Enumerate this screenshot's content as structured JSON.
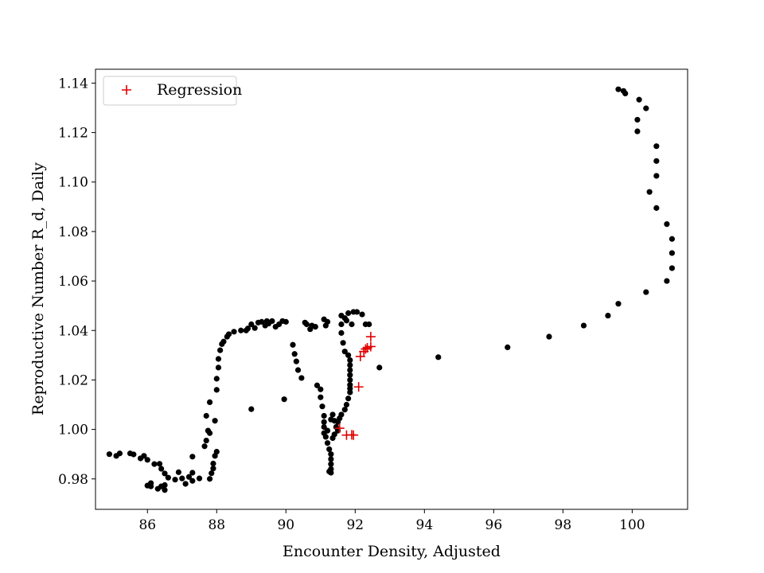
{
  "chart_data": {
    "type": "scatter",
    "title": "",
    "xlabel": "Encounter Density, Adjusted",
    "ylabel": "Reproductive Number R_d, Daily",
    "xlim": [
      84.5,
      101.6
    ],
    "ylim": [
      0.9677,
      1.1456
    ],
    "xticks": [
      86,
      88,
      90,
      92,
      94,
      96,
      98,
      100
    ],
    "yticks": [
      0.98,
      1.0,
      1.02,
      1.04,
      1.06,
      1.08,
      1.1,
      1.12,
      1.14
    ],
    "xtick_labels": [
      "86",
      "88",
      "90",
      "92",
      "94",
      "96",
      "98",
      "100"
    ],
    "ytick_labels": [
      "0.98",
      "1.00",
      "1.02",
      "1.04",
      "1.06",
      "1.08",
      "1.10",
      "1.12",
      "1.14"
    ],
    "grid": false,
    "legend": {
      "position": "top-left",
      "entries": [
        "Regression"
      ]
    },
    "series": [
      {
        "name": "",
        "marker": "dot",
        "color": "#000000",
        "points": [
          [
            84.9,
            0.99
          ],
          [
            85.1,
            0.9893
          ],
          [
            85.2,
            0.9903
          ],
          [
            85.5,
            0.9903
          ],
          [
            85.6,
            0.9899
          ],
          [
            85.8,
            0.9883
          ],
          [
            85.9,
            0.9893
          ],
          [
            86.0,
            0.9877
          ],
          [
            86.2,
            0.986
          ],
          [
            86.35,
            0.9861
          ],
          [
            86.4,
            0.9841
          ],
          [
            86.5,
            0.9822
          ],
          [
            86.6,
            0.9805
          ],
          [
            86.8,
            0.9797
          ],
          [
            86.9,
            0.9827
          ],
          [
            87.0,
            0.9802
          ],
          [
            87.1,
            0.978
          ],
          [
            87.2,
            0.9808
          ],
          [
            87.3,
            0.9825
          ],
          [
            87.3,
            0.9792
          ],
          [
            87.3,
            0.989
          ],
          [
            87.5,
            0.9802
          ],
          [
            87.65,
            0.9932
          ],
          [
            87.7,
            0.9955
          ],
          [
            87.75,
            0.9995
          ],
          [
            87.7,
            1.0055
          ],
          [
            87.8,
            0.9985
          ],
          [
            87.8,
            0.98
          ],
          [
            87.85,
            0.9823
          ],
          [
            87.9,
            0.9842
          ],
          [
            87.9,
            0.9862
          ],
          [
            87.95,
            0.9893
          ],
          [
            87.95,
            1.0035
          ],
          [
            87.8,
            1.011
          ],
          [
            88.0,
            0.991
          ],
          [
            88.0,
            1.016
          ],
          [
            88.0,
            1.0205
          ],
          [
            88.05,
            1.025
          ],
          [
            88.05,
            1.0285
          ],
          [
            88.1,
            1.032
          ],
          [
            88.15,
            1.0345
          ],
          [
            88.2,
            1.0355
          ],
          [
            88.3,
            1.0375
          ],
          [
            88.35,
            1.0385
          ],
          [
            88.5,
            1.0395
          ],
          [
            88.7,
            1.04
          ],
          [
            88.85,
            1.04
          ],
          [
            88.9,
            1.0408
          ],
          [
            89.0,
            1.0425
          ],
          [
            89.1,
            1.041
          ],
          [
            89.2,
            1.0432
          ],
          [
            89.3,
            1.0435
          ],
          [
            89.4,
            1.042
          ],
          [
            89.45,
            1.0438
          ],
          [
            89.5,
            1.0428
          ],
          [
            89.6,
            1.0438
          ],
          [
            89.7,
            1.0415
          ],
          [
            89.8,
            1.0425
          ],
          [
            89.9,
            1.0438
          ],
          [
            90.0,
            1.0435
          ],
          [
            89.0,
            1.0082
          ],
          [
            89.95,
            1.0122
          ],
          [
            86.0,
            0.9773
          ],
          [
            86.1,
            0.9783
          ],
          [
            86.1,
            0.977
          ],
          [
            86.3,
            0.976
          ],
          [
            86.4,
            0.977
          ],
          [
            86.5,
            0.9755
          ],
          [
            86.5,
            0.9775
          ],
          [
            90.2,
            1.0342
          ],
          [
            90.25,
            1.0305
          ],
          [
            90.3,
            1.0275
          ],
          [
            90.35,
            1.024
          ],
          [
            90.45,
            1.0208
          ],
          [
            90.55,
            1.0432
          ],
          [
            90.6,
            1.0425
          ],
          [
            90.7,
            1.0405
          ],
          [
            90.75,
            1.042
          ],
          [
            90.85,
            1.0415
          ],
          [
            90.9,
            1.0178
          ],
          [
            91.0,
            1.0162
          ],
          [
            91.0,
            1.013
          ],
          [
            91.05,
            1.0093
          ],
          [
            91.1,
            1.0445
          ],
          [
            91.15,
            1.042
          ],
          [
            91.2,
            1.0435
          ],
          [
            91.1,
            1.0055
          ],
          [
            91.1,
            1.003
          ],
          [
            91.1,
            1.001
          ],
          [
            91.1,
            0.9985
          ],
          [
            91.15,
            0.997
          ],
          [
            91.2,
            0.9945
          ],
          [
            91.25,
            0.992
          ],
          [
            91.3,
            0.99
          ],
          [
            91.3,
            0.988
          ],
          [
            91.3,
            0.986
          ],
          [
            91.3,
            0.984
          ],
          [
            91.3,
            0.9825
          ],
          [
            91.25,
            0.983
          ],
          [
            91.3,
            1.004
          ],
          [
            91.35,
            1.006
          ],
          [
            91.4,
            1.0035
          ],
          [
            91.45,
            1.001
          ],
          [
            91.5,
            0.9995
          ],
          [
            91.4,
            0.998
          ],
          [
            91.2,
            0.9995
          ],
          [
            91.35,
            0.9965
          ],
          [
            91.6,
            1.046
          ],
          [
            91.7,
            1.045
          ],
          [
            91.75,
            1.044
          ],
          [
            91.6,
            1.0425
          ],
          [
            91.6,
            1.039
          ],
          [
            91.65,
            1.035
          ],
          [
            91.7,
            1.0315
          ],
          [
            91.8,
            1.03
          ],
          [
            91.85,
            1.028
          ],
          [
            91.85,
            1.026
          ],
          [
            91.85,
            1.024
          ],
          [
            91.85,
            1.022
          ],
          [
            91.85,
            1.02
          ],
          [
            91.85,
            1.018
          ],
          [
            91.85,
            1.0165
          ],
          [
            91.85,
            1.015
          ],
          [
            91.8,
            1.0125
          ],
          [
            91.75,
            1.01
          ],
          [
            91.7,
            1.008
          ],
          [
            91.6,
            1.006
          ],
          [
            91.55,
            1.0045
          ],
          [
            91.5,
            1.003
          ],
          [
            91.8,
            1.047
          ],
          [
            91.95,
            1.0475
          ],
          [
            92.05,
            1.0475
          ],
          [
            92.2,
            1.0465
          ],
          [
            92.3,
            1.0425
          ],
          [
            92.4,
            1.0425
          ],
          [
            91.9,
            1.0425
          ],
          [
            92.7,
            1.025
          ],
          [
            94.4,
            1.0292
          ],
          [
            96.4,
            1.0332
          ],
          [
            97.6,
            1.0375
          ],
          [
            98.6,
            1.042
          ],
          [
            99.3,
            1.046
          ],
          [
            99.6,
            1.0508
          ],
          [
            100.4,
            1.0555
          ],
          [
            101.0,
            1.06
          ],
          [
            101.15,
            1.0652
          ],
          [
            101.15,
            1.0713
          ],
          [
            101.15,
            1.077
          ],
          [
            101.0,
            1.083
          ],
          [
            100.7,
            1.0895
          ],
          [
            100.5,
            1.096
          ],
          [
            100.7,
            1.1025
          ],
          [
            100.7,
            1.1085
          ],
          [
            100.7,
            1.1145
          ],
          [
            100.15,
            1.1205
          ],
          [
            100.15,
            1.1252
          ],
          [
            100.4,
            1.1298
          ],
          [
            100.2,
            1.1333
          ],
          [
            99.8,
            1.1358
          ],
          [
            99.75,
            1.1368
          ],
          [
            99.6,
            1.1375
          ]
        ]
      },
      {
        "name": "Regression",
        "marker": "plus",
        "color": "#e00000",
        "points": [
          [
            91.55,
            1.0005
          ],
          [
            91.75,
            0.9977
          ],
          [
            91.9,
            0.9978
          ],
          [
            91.95,
            0.9977
          ],
          [
            92.1,
            1.0172
          ],
          [
            92.15,
            1.0295
          ],
          [
            92.25,
            1.0315
          ],
          [
            92.3,
            1.0325
          ],
          [
            92.35,
            1.033
          ],
          [
            92.45,
            1.0335
          ],
          [
            92.45,
            1.0375
          ]
        ]
      }
    ]
  }
}
